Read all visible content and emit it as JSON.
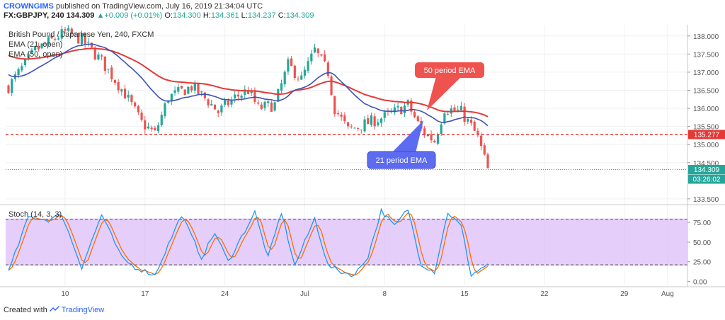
{
  "header": {
    "author": "CROWNGIMS",
    "published_text": "published on TradingView.com, July 16, 2019 21:34:04 UTC",
    "symbol": "FX:GBPJPY, 240",
    "last": "134.309",
    "change_arrow": "▲",
    "change": "+0.009 (+0.01%)",
    "o_label": "O:",
    "o": "134.300",
    "h_label": "H:",
    "h": "134.361",
    "l_label": "L:",
    "l": "134.237",
    "c_label": "C:",
    "c": "134.309"
  },
  "footer": {
    "created_with": "Created with",
    "brand": "TradingView",
    "logo_icon": "tradingview-logo-icon"
  },
  "colors": {
    "up": "#26a69a",
    "down": "#ef5350",
    "ema21": "#3f51b5",
    "ema50": "#e53935",
    "stoch_k": "#2196f3",
    "stoch_d": "#ff6d00",
    "stoch_band": "#d8b3f8",
    "resistance": "#e53935",
    "last_price": "#26a69a",
    "callout50": "#ef5350",
    "callout21": "#5c6bf0"
  },
  "chart_data": {
    "type": "candlestick",
    "instrument": "British Pound / Japanese Yen, 240, FXCM",
    "indicators": [
      {
        "name": "EMA (21, open)",
        "color": "#3f51b5"
      },
      {
        "name": "EMA (50, open)",
        "color": "#e53935"
      }
    ],
    "annotations": [
      {
        "text": "50 period EMA"
      },
      {
        "text": "21 period EMA"
      }
    ],
    "x_ticks": [
      "10",
      "17",
      "24",
      "Jul",
      "8",
      "15",
      "22",
      "29",
      "Aug"
    ],
    "y_ticks": [
      "138.000",
      "137.500",
      "137.000",
      "136.500",
      "136.000",
      "135.500",
      "135.000",
      "134.500",
      "133.500"
    ],
    "ylim": [
      133.4,
      138.25
    ],
    "resistance_level": {
      "value": 135.277,
      "label": "135.277"
    },
    "last_price": {
      "value": 134.309,
      "label": "134.309"
    },
    "countdown": "03:26:02",
    "price_anchors": [
      [
        0,
        136.6
      ],
      [
        8,
        137.6
      ],
      [
        17,
        138.1
      ],
      [
        22,
        137.9
      ],
      [
        28,
        137.3
      ],
      [
        35,
        136.4
      ],
      [
        40,
        135.6
      ],
      [
        44,
        135.3
      ],
      [
        48,
        136.3
      ],
      [
        55,
        136.6
      ],
      [
        60,
        136.2
      ],
      [
        63,
        135.9
      ],
      [
        68,
        136.3
      ],
      [
        72,
        136.5
      ],
      [
        75,
        136.0
      ],
      [
        80,
        136.1
      ],
      [
        84,
        137.2
      ],
      [
        88,
        136.8
      ],
      [
        92,
        137.6
      ],
      [
        96,
        137.0
      ],
      [
        98,
        136.0
      ],
      [
        102,
        135.4
      ],
      [
        108,
        135.6
      ],
      [
        114,
        135.8
      ],
      [
        120,
        136.1
      ],
      [
        124,
        135.4
      ],
      [
        128,
        135.1
      ],
      [
        131,
        136.0
      ],
      [
        136,
        135.9
      ],
      [
        139,
        135.5
      ],
      [
        141,
        135.2
      ],
      [
        143,
        134.6
      ],
      [
        144,
        134.3
      ]
    ],
    "stochastic": {
      "name": "Stoch (14, 3, 3)",
      "y_ticks": [
        "75.00",
        "50.00",
        "25.00",
        "0.00"
      ],
      "ylim": [
        -5,
        95
      ],
      "band": [
        20,
        80
      ],
      "k_anchors": [
        [
          0,
          12
        ],
        [
          6,
          82
        ],
        [
          12,
          78
        ],
        [
          16,
          85
        ],
        [
          22,
          18
        ],
        [
          28,
          85
        ],
        [
          34,
          30
        ],
        [
          38,
          18
        ],
        [
          44,
          8
        ],
        [
          52,
          85
        ],
        [
          58,
          30
        ],
        [
          62,
          62
        ],
        [
          66,
          25
        ],
        [
          74,
          88
        ],
        [
          78,
          30
        ],
        [
          82,
          88
        ],
        [
          86,
          20
        ],
        [
          92,
          80
        ],
        [
          96,
          20
        ],
        [
          100,
          12
        ],
        [
          104,
          8
        ],
        [
          108,
          32
        ],
        [
          112,
          90
        ],
        [
          116,
          70
        ],
        [
          120,
          92
        ],
        [
          124,
          22
        ],
        [
          128,
          12
        ],
        [
          132,
          88
        ],
        [
          136,
          70
        ],
        [
          139,
          8
        ],
        [
          144,
          22
        ]
      ]
    }
  }
}
